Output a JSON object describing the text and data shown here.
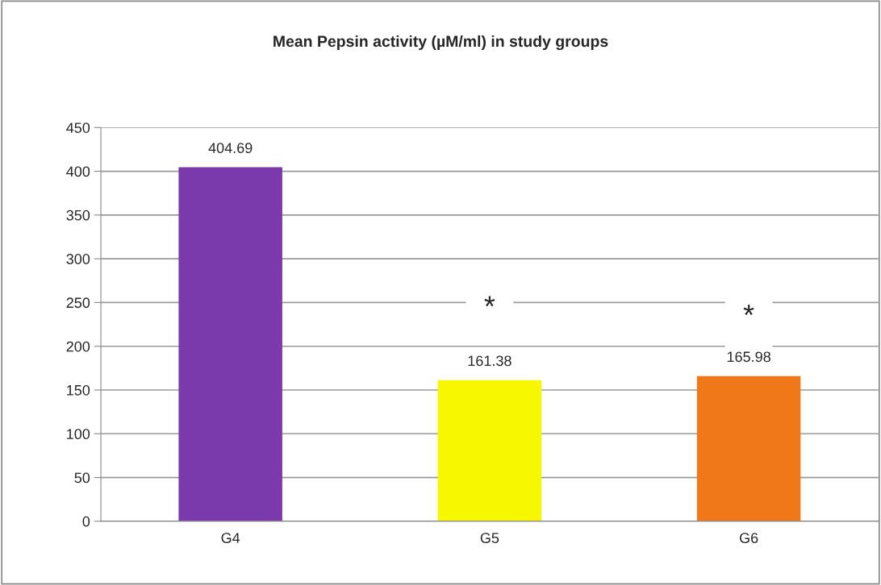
{
  "chart_data": {
    "type": "bar",
    "title": "Mean Pepsin activity (µM/ml) in study groups",
    "categories": [
      "G4",
      "G5",
      "G6"
    ],
    "values": [
      404.69,
      161.38,
      165.98
    ],
    "colors": [
      "#7b3aac",
      "#f7f700",
      "#f07818"
    ],
    "ylim": [
      0,
      450
    ],
    "yticks": [
      0,
      50,
      100,
      150,
      200,
      250,
      300,
      350,
      400,
      450
    ],
    "grid": "y",
    "data_labels": true,
    "legend": false,
    "annotations": [
      "*",
      "*"
    ]
  }
}
